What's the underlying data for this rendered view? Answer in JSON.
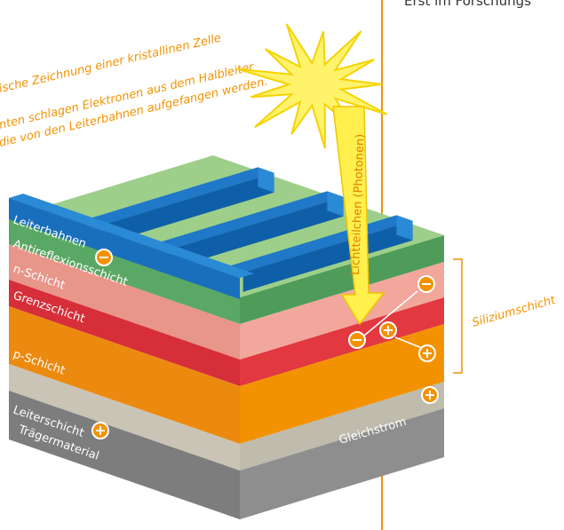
{
  "header": {
    "title_fragment": "Erst im Forschungs",
    "caption_lines": [
      "ische Zeichnung einer kristallinen Zelle",
      "nten schlagen Elektronen aus dem Halbleiter",
      "die von den Leiterbahnen aufgefangen werden."
    ]
  },
  "layers": [
    {
      "label": "Leiterbahnen"
    },
    {
      "label": "Antireflexionsschicht"
    },
    {
      "label": "n-Schicht"
    },
    {
      "label": "Grenzschicht"
    },
    {
      "label": "p-Schicht"
    },
    {
      "label": "Leiterschicht"
    },
    {
      "label": "Trägermaterial"
    }
  ],
  "labels": {
    "photons": "Lichtteilchen (Photonen)",
    "silicon": "Siliziumschicht",
    "current": "Gleichstrom"
  }
}
